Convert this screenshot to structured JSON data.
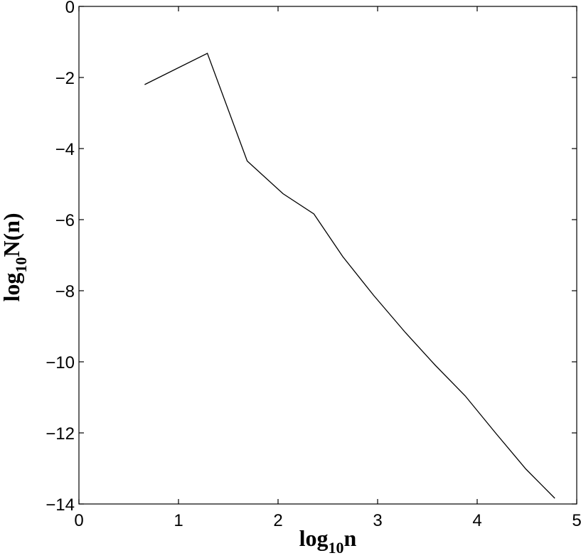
{
  "chart_data": {
    "type": "line",
    "xlabel": {
      "base": "log",
      "subscript": "10",
      "rest": "n"
    },
    "ylabel": {
      "base": "log",
      "subscript": "10",
      "rest": "N(n)"
    },
    "xlim": [
      0,
      5
    ],
    "ylim": [
      -14,
      0
    ],
    "xticks": [
      0,
      1,
      2,
      3,
      4,
      5
    ],
    "yticks": [
      0,
      -2,
      -4,
      -6,
      -8,
      -10,
      -12,
      -14
    ],
    "xtick_labels": [
      "0",
      "1",
      "2",
      "3",
      "4",
      "5"
    ],
    "ytick_labels": [
      "0",
      "−2",
      "−4",
      "−6",
      "−8",
      "−10",
      "−12",
      "−14"
    ],
    "grid": false,
    "line_color": "#000000",
    "series": [
      {
        "x": [
          0.66,
          1.29,
          1.69,
          2.05,
          2.36,
          2.65,
          2.96,
          3.28,
          3.58,
          3.88,
          4.19,
          4.49,
          4.78
        ],
        "y": [
          -2.2,
          -1.32,
          -4.35,
          -5.27,
          -5.84,
          -7.04,
          -8.13,
          -9.18,
          -10.1,
          -10.96,
          -12.02,
          -13.02,
          -13.84
        ]
      }
    ]
  }
}
